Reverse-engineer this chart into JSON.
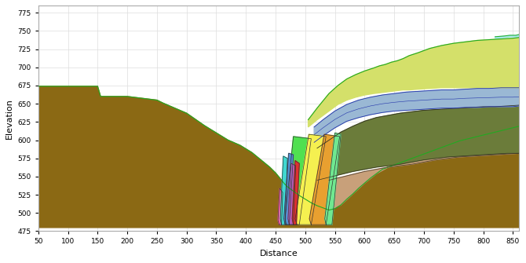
{
  "xlim": [
    50,
    860
  ],
  "ylim": [
    475,
    785
  ],
  "xlabel": "Distance",
  "ylabel": "Elevation",
  "xticks": [
    50,
    100,
    150,
    200,
    250,
    300,
    350,
    400,
    450,
    500,
    550,
    600,
    650,
    700,
    750,
    800,
    850
  ],
  "yticks": [
    475,
    500,
    525,
    550,
    575,
    600,
    625,
    650,
    675,
    700,
    725,
    750,
    775
  ],
  "bg_color": "#ffffff",
  "grid_color": "#dddddd",
  "base_elevation": 480,
  "brown_color": "#8B6914",
  "green_outline": "#22aa22",
  "layer_colors": {
    "yellow_green": "#d4e06a",
    "steel_blue": "#9ab8d4",
    "dark_olive": "#6b7c3a",
    "tan_pink": "#c8a07a",
    "light_yellow": "#f5f050",
    "orange": "#e8a030",
    "bright_green": "#50e050",
    "cyan": "#40d8d0",
    "blue": "#5090d0",
    "purple": "#b060c0",
    "red": "#e03030",
    "pink": "#f060a0",
    "light_green2": "#70e890",
    "light_cyan_top": "#a0e8e8"
  }
}
